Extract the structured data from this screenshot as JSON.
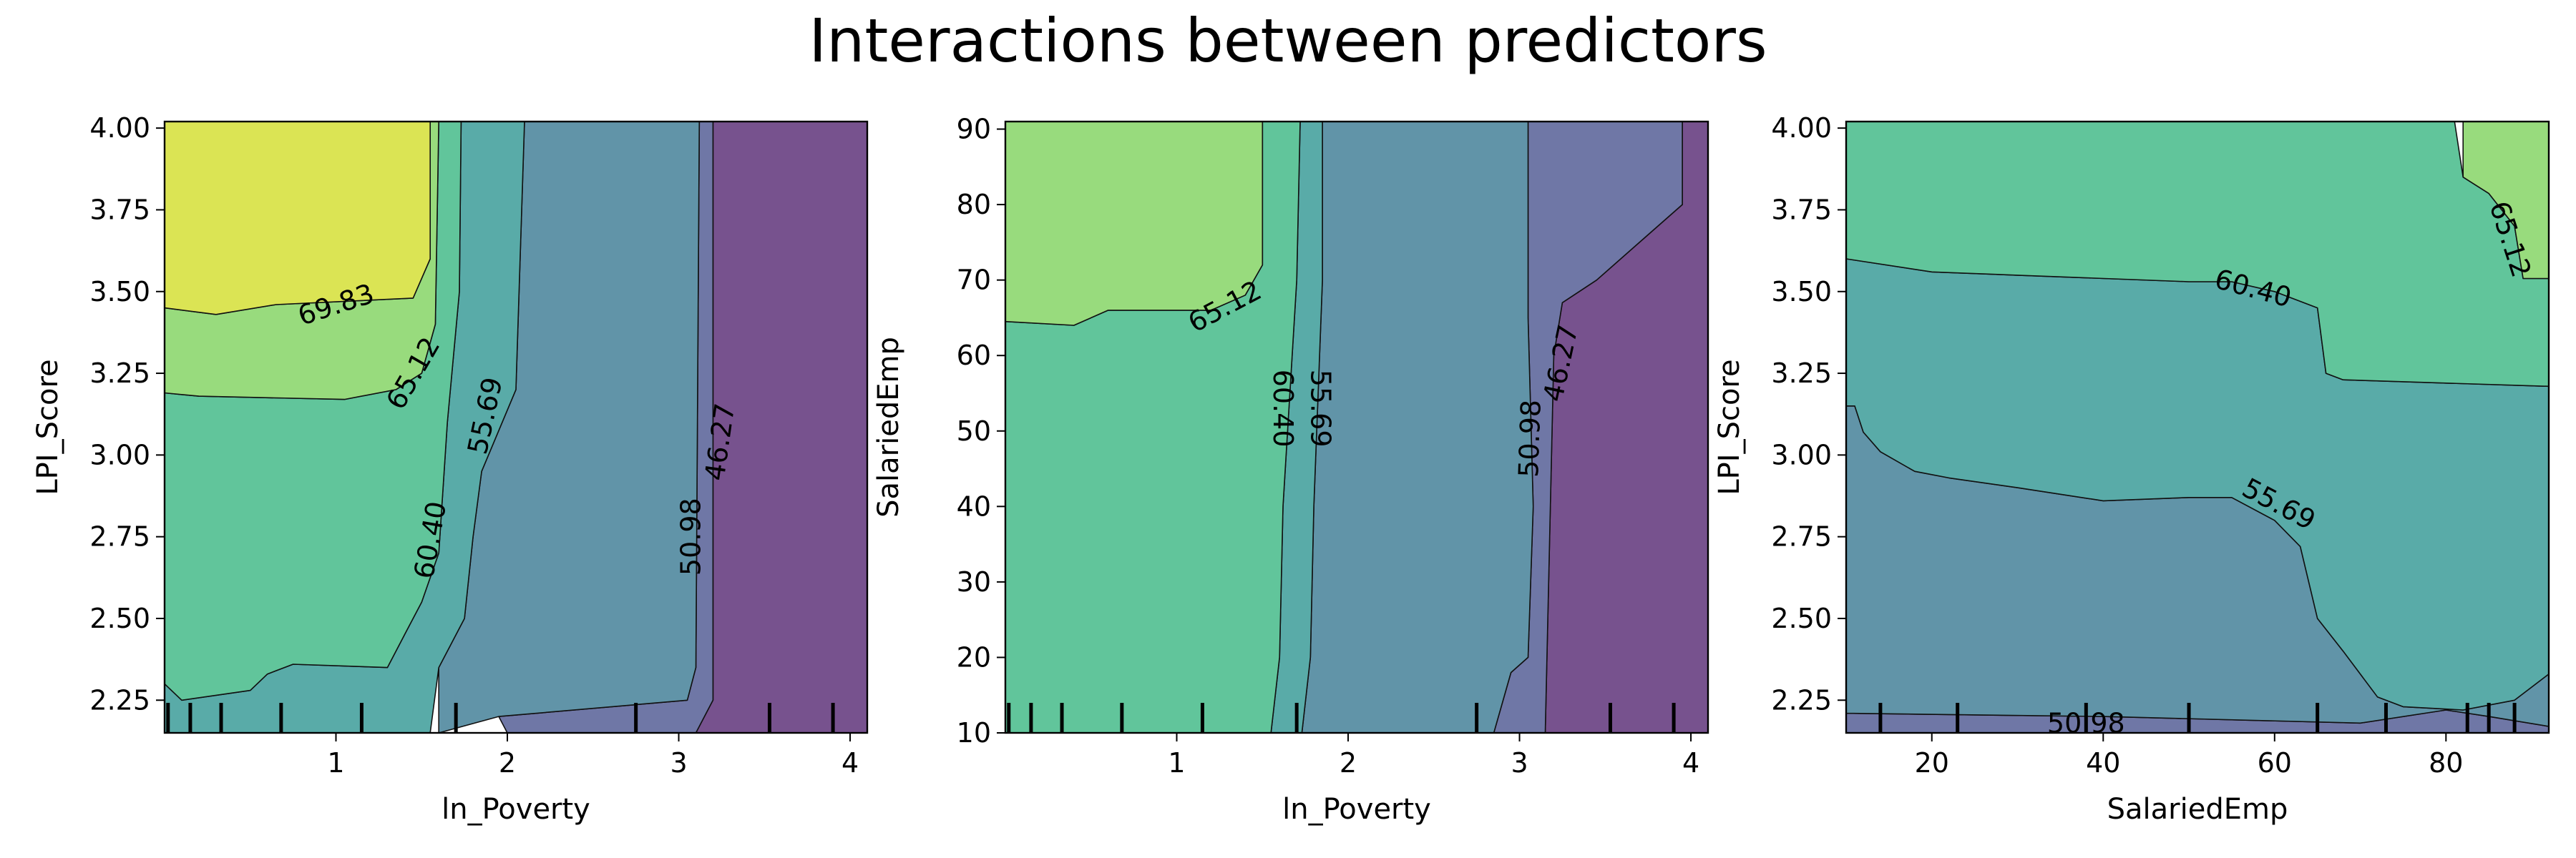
{
  "figure": {
    "suptitle": "Interactions between predictors"
  },
  "chart_data": [
    {
      "type": "contour",
      "xlabel": "ln_Poverty",
      "ylabel": "LPI_Score",
      "xlim": [
        0.0,
        4.1
      ],
      "ylim": [
        2.15,
        4.02
      ],
      "x_ticks": [
        1,
        2,
        3,
        4
      ],
      "x_tick_labels": [
        "1",
        "2",
        "3",
        "4"
      ],
      "y_ticks": [
        2.25,
        2.5,
        2.75,
        3.0,
        3.25,
        3.5,
        3.75,
        4.0
      ],
      "y_tick_labels": [
        "2.25",
        "2.50",
        "2.75",
        "3.00",
        "3.25",
        "3.50",
        "3.75",
        "4.00"
      ],
      "band_colors": [
        "#77528e",
        "#6f77a6",
        "#6194a8",
        "#59aba8",
        "#61c59b",
        "#98db7d",
        "#dbe454"
      ],
      "bands": [
        [
          [
            4.1,
            2.15
          ],
          [
            4.1,
            4.02
          ],
          [
            3.2,
            4.02
          ],
          [
            3.2,
            2.25
          ],
          [
            3.1,
            2.15
          ]
        ],
        [
          [
            3.2,
            4.02
          ],
          [
            3.2,
            2.25
          ],
          [
            3.1,
            2.15
          ],
          [
            2.0,
            2.15
          ],
          [
            1.95,
            2.2
          ],
          [
            3.05,
            2.25
          ],
          [
            3.1,
            2.35
          ],
          [
            3.12,
            4.02
          ]
        ],
        [
          [
            3.12,
            4.02
          ],
          [
            3.1,
            2.35
          ],
          [
            3.05,
            2.25
          ],
          [
            1.95,
            2.2
          ],
          [
            1.6,
            2.15
          ],
          [
            1.6,
            2.35
          ],
          [
            1.75,
            2.5
          ],
          [
            1.8,
            2.75
          ],
          [
            1.85,
            2.95
          ],
          [
            2.05,
            3.2
          ],
          [
            2.1,
            4.02
          ]
        ],
        [
          [
            2.1,
            4.02
          ],
          [
            2.05,
            3.2
          ],
          [
            1.85,
            2.95
          ],
          [
            1.8,
            2.75
          ],
          [
            1.75,
            2.5
          ],
          [
            1.6,
            2.35
          ],
          [
            1.55,
            2.15
          ],
          [
            0.0,
            2.15
          ],
          [
            0.0,
            2.3
          ],
          [
            0.1,
            2.25
          ],
          [
            0.5,
            2.28
          ],
          [
            0.6,
            2.33
          ],
          [
            0.75,
            2.36
          ],
          [
            1.3,
            2.35
          ],
          [
            1.4,
            2.45
          ],
          [
            1.5,
            2.55
          ],
          [
            1.6,
            2.7
          ],
          [
            1.65,
            3.1
          ],
          [
            1.72,
            3.5
          ],
          [
            1.73,
            4.02
          ]
        ],
        [
          [
            1.73,
            4.02
          ],
          [
            1.72,
            3.5
          ],
          [
            1.65,
            3.1
          ],
          [
            1.6,
            2.7
          ],
          [
            1.5,
            2.55
          ],
          [
            1.4,
            2.45
          ],
          [
            1.3,
            2.35
          ],
          [
            0.75,
            2.36
          ],
          [
            0.6,
            2.33
          ],
          [
            0.5,
            2.28
          ],
          [
            0.1,
            2.25
          ],
          [
            0.0,
            2.3
          ],
          [
            0.0,
            3.19
          ],
          [
            0.2,
            3.18
          ],
          [
            1.05,
            3.17
          ],
          [
            1.35,
            3.2
          ],
          [
            1.5,
            3.25
          ],
          [
            1.58,
            3.4
          ],
          [
            1.6,
            4.02
          ]
        ],
        [
          [
            1.6,
            4.02
          ],
          [
            1.58,
            3.4
          ],
          [
            1.5,
            3.25
          ],
          [
            1.35,
            3.2
          ],
          [
            1.05,
            3.17
          ],
          [
            0.2,
            3.18
          ],
          [
            0.0,
            3.19
          ],
          [
            0.0,
            3.45
          ],
          [
            0.3,
            3.43
          ],
          [
            0.65,
            3.46
          ],
          [
            1.45,
            3.48
          ],
          [
            1.55,
            3.6
          ],
          [
            1.55,
            4.02
          ]
        ],
        [
          [
            1.55,
            4.02
          ],
          [
            1.55,
            3.6
          ],
          [
            1.45,
            3.48
          ],
          [
            0.65,
            3.46
          ],
          [
            0.3,
            3.43
          ],
          [
            0.0,
            3.45
          ],
          [
            0.0,
            4.02
          ]
        ]
      ],
      "contour_labels": [
        {
          "text": "69.83",
          "x": 1.0,
          "y": 3.46,
          "angle": -18
        },
        {
          "text": "65.12",
          "x": 1.45,
          "y": 3.25,
          "angle": -60
        },
        {
          "text": "60.40",
          "x": 1.55,
          "y": 2.74,
          "angle": -80
        },
        {
          "text": "55.69",
          "x": 1.87,
          "y": 3.12,
          "angle": -78
        },
        {
          "text": "50.98",
          "x": 3.07,
          "y": 2.75,
          "angle": -90
        },
        {
          "text": "46.27",
          "x": 3.24,
          "y": 3.04,
          "angle": -82
        }
      ],
      "rug": [
        0.02,
        0.15,
        0.33,
        0.68,
        1.15,
        1.7,
        2.75,
        3.53,
        3.9
      ]
    },
    {
      "type": "contour",
      "xlabel": "ln_Poverty",
      "ylabel": "SalariedEmp",
      "xlim": [
        0.0,
        4.1
      ],
      "ylim": [
        10,
        91
      ],
      "x_ticks": [
        1,
        2,
        3,
        4
      ],
      "x_tick_labels": [
        "1",
        "2",
        "3",
        "4"
      ],
      "y_ticks": [
        10,
        20,
        30,
        40,
        50,
        60,
        70,
        80,
        90
      ],
      "y_tick_labels": [
        "10",
        "20",
        "30",
        "40",
        "50",
        "60",
        "70",
        "80",
        "90"
      ],
      "band_colors": [
        "#77528e",
        "#6f77a6",
        "#6194a8",
        "#59aba8",
        "#61c59b",
        "#98db7d"
      ],
      "bands": [
        [
          [
            4.1,
            10
          ],
          [
            4.1,
            91
          ],
          [
            3.95,
            91
          ],
          [
            3.95,
            80
          ],
          [
            3.7,
            75
          ],
          [
            3.45,
            70
          ],
          [
            3.25,
            67
          ],
          [
            3.2,
            60
          ],
          [
            3.15,
            10
          ]
        ],
        [
          [
            3.15,
            10
          ],
          [
            3.2,
            60
          ],
          [
            3.25,
            67
          ],
          [
            3.45,
            70
          ],
          [
            3.7,
            75
          ],
          [
            3.95,
            80
          ],
          [
            3.95,
            91
          ],
          [
            3.05,
            91
          ],
          [
            3.05,
            65
          ],
          [
            3.08,
            40
          ],
          [
            3.05,
            20
          ],
          [
            2.95,
            18
          ],
          [
            2.85,
            10
          ]
        ],
        [
          [
            2.85,
            10
          ],
          [
            2.95,
            18
          ],
          [
            3.05,
            20
          ],
          [
            3.08,
            40
          ],
          [
            3.05,
            65
          ],
          [
            3.05,
            91
          ],
          [
            1.85,
            91
          ],
          [
            1.85,
            70
          ],
          [
            1.8,
            40
          ],
          [
            1.78,
            20
          ],
          [
            1.73,
            10
          ]
        ],
        [
          [
            1.73,
            10
          ],
          [
            1.78,
            20
          ],
          [
            1.8,
            40
          ],
          [
            1.85,
            70
          ],
          [
            1.85,
            91
          ],
          [
            1.72,
            91
          ],
          [
            1.7,
            70
          ],
          [
            1.62,
            40
          ],
          [
            1.6,
            20
          ],
          [
            1.55,
            10
          ]
        ],
        [
          [
            1.55,
            10
          ],
          [
            1.6,
            20
          ],
          [
            1.62,
            40
          ],
          [
            1.7,
            70
          ],
          [
            1.72,
            91
          ],
          [
            1.5,
            91
          ],
          [
            1.5,
            72
          ],
          [
            1.4,
            68
          ],
          [
            1.2,
            66
          ],
          [
            0.6,
            66
          ],
          [
            0.4,
            64
          ],
          [
            0.0,
            64.5
          ],
          [
            0.0,
            10
          ]
        ],
        [
          [
            1.5,
            91
          ],
          [
            1.5,
            72
          ],
          [
            1.4,
            68
          ],
          [
            1.2,
            66
          ],
          [
            0.6,
            66
          ],
          [
            0.4,
            64
          ],
          [
            0.0,
            64.5
          ],
          [
            0.0,
            91
          ]
        ]
      ],
      "contour_labels": [
        {
          "text": "65.12",
          "x": 1.28,
          "y": 66.5,
          "angle": -28
        },
        {
          "text": "60.40",
          "x": 1.62,
          "y": 53,
          "angle": 90
        },
        {
          "text": "55.69",
          "x": 1.84,
          "y": 53,
          "angle": 90
        },
        {
          "text": "50.98",
          "x": 3.06,
          "y": 49,
          "angle": -88
        },
        {
          "text": "46.27",
          "x": 3.24,
          "y": 59,
          "angle": -78
        }
      ],
      "rug": [
        0.02,
        0.15,
        0.33,
        0.68,
        1.15,
        1.7,
        2.75,
        3.53,
        3.9
      ]
    },
    {
      "type": "contour",
      "xlabel": "SalariedEmp",
      "ylabel": "LPI_Score",
      "xlim": [
        10,
        92
      ],
      "ylim": [
        2.15,
        4.02
      ],
      "x_ticks": [
        20,
        40,
        60,
        80
      ],
      "x_tick_labels": [
        "20",
        "40",
        "60",
        "80"
      ],
      "y_ticks": [
        2.25,
        2.5,
        2.75,
        3.0,
        3.25,
        3.5,
        3.75,
        4.0
      ],
      "y_tick_labels": [
        "2.25",
        "2.50",
        "2.75",
        "3.00",
        "3.25",
        "3.50",
        "3.75",
        "4.00"
      ],
      "band_colors": [
        "#6f77a6",
        "#6194a8",
        "#59aba8",
        "#61c59b",
        "#98db7d"
      ],
      "bands": [
        [
          [
            10,
            2.15
          ],
          [
            92,
            2.15
          ],
          [
            92,
            2.17
          ],
          [
            85,
            2.2
          ],
          [
            80,
            2.22
          ],
          [
            70,
            2.18
          ],
          [
            40,
            2.2
          ],
          [
            10,
            2.21
          ]
        ],
        [
          [
            10,
            2.21
          ],
          [
            40,
            2.2
          ],
          [
            70,
            2.18
          ],
          [
            80,
            2.22
          ],
          [
            85,
            2.2
          ],
          [
            92,
            2.17
          ],
          [
            92,
            2.33
          ],
          [
            88,
            2.25
          ],
          [
            82,
            2.22
          ],
          [
            75,
            2.23
          ],
          [
            72,
            2.26
          ],
          [
            68,
            2.4
          ],
          [
            65,
            2.5
          ],
          [
            63,
            2.72
          ],
          [
            60,
            2.8
          ],
          [
            55,
            2.87
          ],
          [
            50,
            2.87
          ],
          [
            40,
            2.86
          ],
          [
            30,
            2.9
          ],
          [
            22,
            2.93
          ],
          [
            18,
            2.95
          ],
          [
            14,
            3.01
          ],
          [
            12,
            3.07
          ],
          [
            11,
            3.15
          ],
          [
            10,
            3.15
          ]
        ],
        [
          [
            10,
            3.15
          ],
          [
            11,
            3.15
          ],
          [
            12,
            3.07
          ],
          [
            14,
            3.01
          ],
          [
            18,
            2.95
          ],
          [
            22,
            2.93
          ],
          [
            30,
            2.9
          ],
          [
            40,
            2.86
          ],
          [
            50,
            2.87
          ],
          [
            55,
            2.87
          ],
          [
            60,
            2.8
          ],
          [
            63,
            2.72
          ],
          [
            65,
            2.5
          ],
          [
            68,
            2.4
          ],
          [
            72,
            2.26
          ],
          [
            75,
            2.23
          ],
          [
            82,
            2.22
          ],
          [
            88,
            2.25
          ],
          [
            92,
            2.33
          ],
          [
            92,
            3.21
          ],
          [
            80,
            3.22
          ],
          [
            68,
            3.23
          ],
          [
            66,
            3.25
          ],
          [
            65,
            3.45
          ],
          [
            60,
            3.5
          ],
          [
            55,
            3.53
          ],
          [
            50,
            3.53
          ],
          [
            30,
            3.55
          ],
          [
            20,
            3.56
          ],
          [
            10,
            3.6
          ]
        ],
        [
          [
            10,
            3.6
          ],
          [
            20,
            3.56
          ],
          [
            30,
            3.55
          ],
          [
            50,
            3.53
          ],
          [
            55,
            3.53
          ],
          [
            60,
            3.5
          ],
          [
            65,
            3.45
          ],
          [
            66,
            3.25
          ],
          [
            68,
            3.23
          ],
          [
            80,
            3.22
          ],
          [
            92,
            3.21
          ],
          [
            92,
            3.54
          ],
          [
            89,
            3.54
          ],
          [
            88,
            3.7
          ],
          [
            85,
            3.8
          ],
          [
            82,
            3.85
          ],
          [
            81,
            4.02
          ],
          [
            10,
            4.02
          ]
        ],
        [
          [
            82,
            4.02
          ],
          [
            82,
            3.85
          ],
          [
            85,
            3.8
          ],
          [
            88,
            3.7
          ],
          [
            89,
            3.54
          ],
          [
            92,
            3.54
          ],
          [
            92,
            4.02
          ]
        ]
      ],
      "contour_labels": [
        {
          "text": "65.12",
          "x": 87.5,
          "y": 3.66,
          "angle": 72
        },
        {
          "text": "60.40",
          "x": 57.5,
          "y": 3.51,
          "angle": 15
        },
        {
          "text": "55.69",
          "x": 60.5,
          "y": 2.85,
          "angle": 28
        },
        {
          "text": "50.98",
          "x": 38.0,
          "y": 2.18,
          "angle": 0
        }
      ],
      "rug": [
        14,
        23,
        38,
        50,
        65,
        73,
        82.5,
        85,
        88
      ]
    }
  ]
}
